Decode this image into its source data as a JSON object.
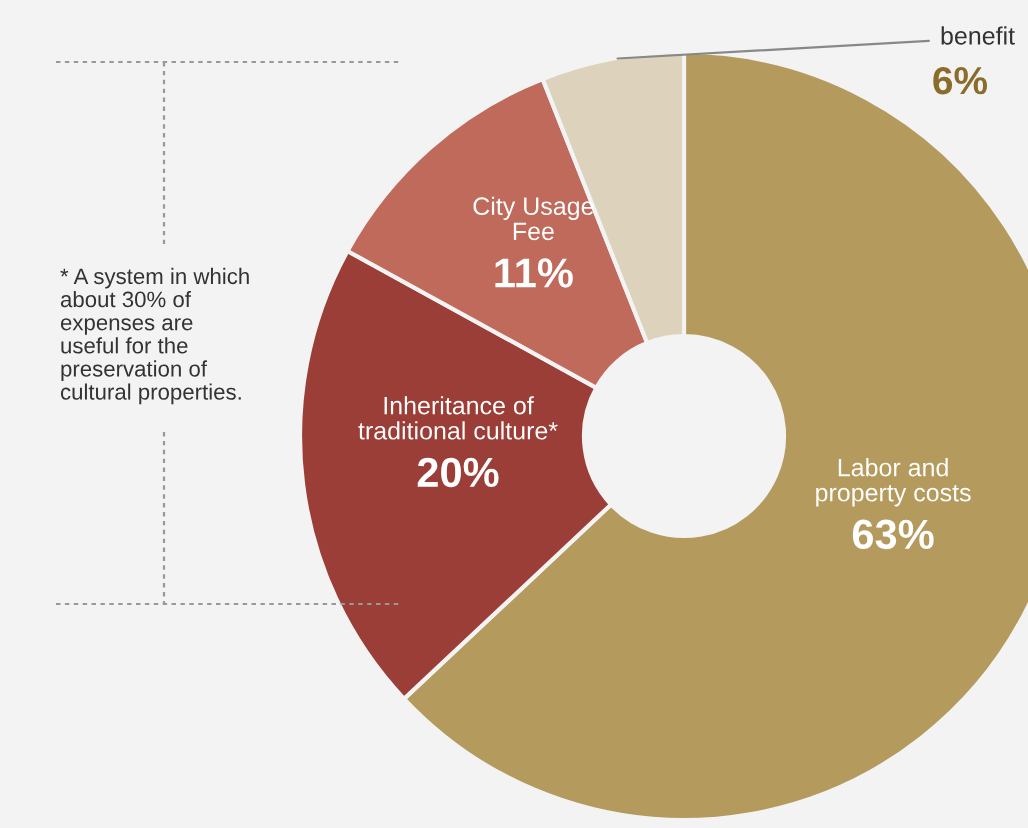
{
  "chart_data": {
    "type": "donut",
    "categories": [
      "Labor and\nproperty costs",
      "Inheritance of\ntraditional culture*",
      "City Usage\nFee",
      "benefit"
    ],
    "values": [
      63,
      20,
      11,
      6
    ],
    "colors": [
      "#b59a5e",
      "#9c3e38",
      "#bf6a5b",
      "#ddd3bc"
    ],
    "value_labels": [
      "63%",
      "20%",
      "11%",
      "6%"
    ],
    "annotations": [
      "* A system in which\nabout 30% of\nexpenses are\nuseful for the\npreservation of\ncultural properties."
    ],
    "legend": false
  }
}
